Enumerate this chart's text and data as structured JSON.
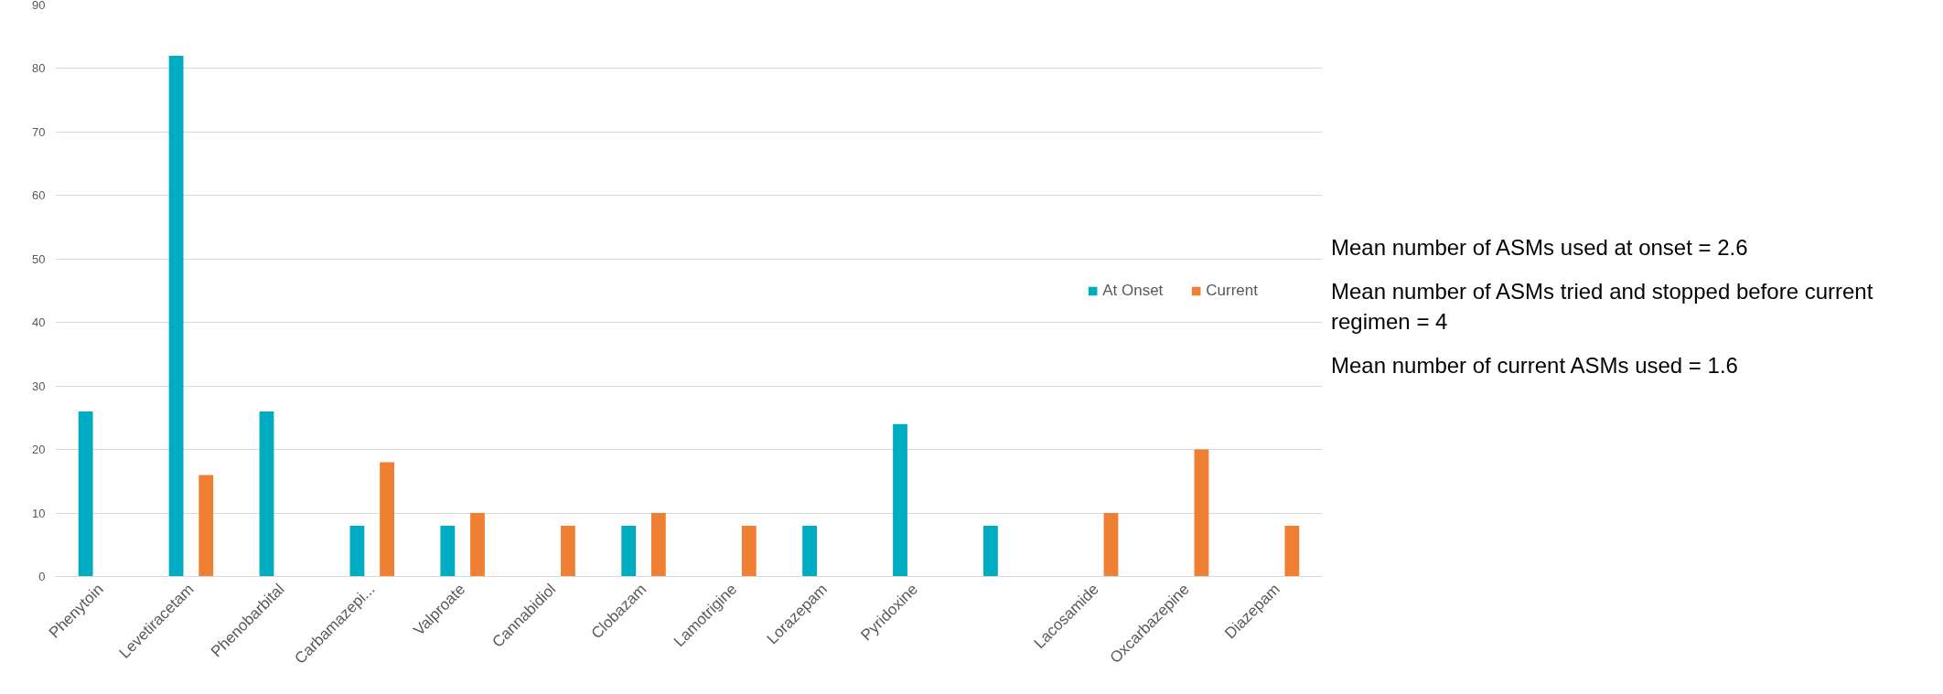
{
  "chart_data": {
    "type": "bar",
    "categories": [
      "Phenytoin",
      "Levetiracetam",
      "Phenobarbital",
      "Carbamazepi...",
      "Valproate",
      "Cannabidiol",
      "Clobazam",
      "Lamotrigine",
      "Lorazepam",
      "Pyridoxine",
      null,
      "Lacosamide",
      "Oxcarbazepine",
      "Diazepam"
    ],
    "series": [
      {
        "name": "At Onset",
        "color": "#00acc1",
        "values": [
          26,
          82,
          26,
          8,
          8,
          null,
          8,
          null,
          8,
          24,
          8,
          null,
          null,
          null
        ]
      },
      {
        "name": "Current",
        "color": "#ef8033",
        "values": [
          null,
          16,
          null,
          18,
          10,
          8,
          10,
          8,
          null,
          null,
          null,
          10,
          20,
          8
        ]
      }
    ],
    "ylim": [
      0,
      90
    ],
    "yticks": [
      0,
      10,
      20,
      30,
      40,
      50,
      60,
      70,
      80,
      90
    ],
    "grid": "y",
    "legend": "right",
    "annotations": [
      "Mean number of ASMs used at onset = 2.6",
      "Mean number of ASMs tried and stopped before current regimen = 4",
      "Mean number of current ASMs used = 1.6"
    ]
  }
}
